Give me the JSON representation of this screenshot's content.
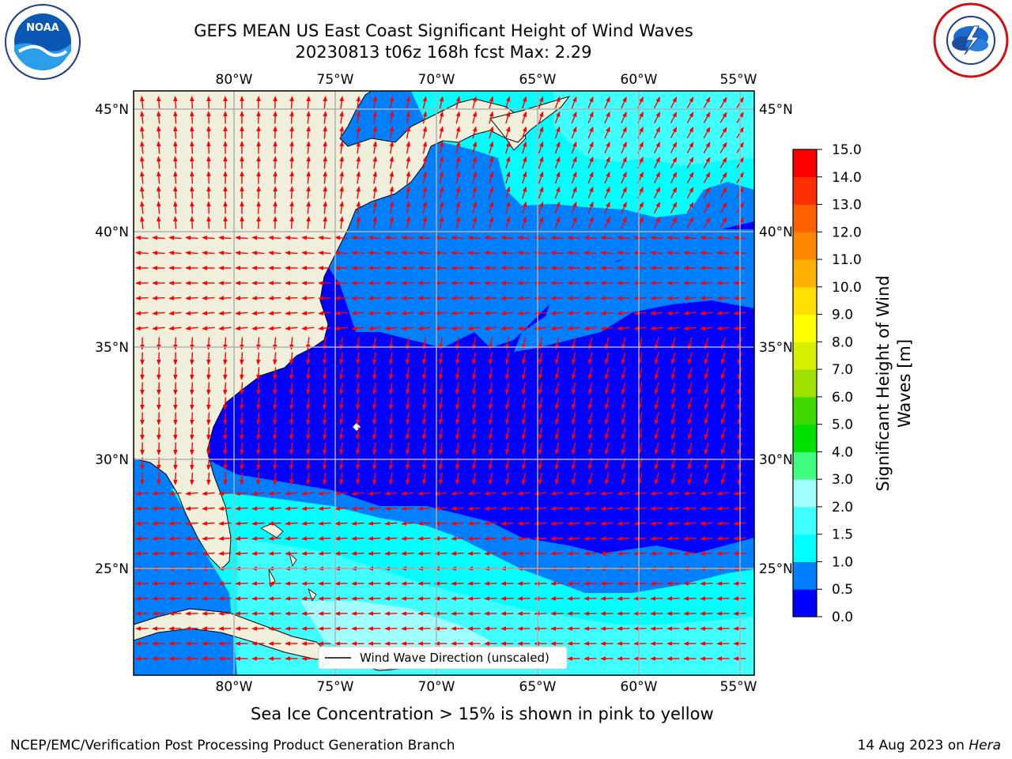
{
  "header": {
    "title_line1": "GEFS MEAN US East Coast Significant Height of Wind Waves",
    "title_line2": "20230813 t06z 168h fcst   Max: 2.29"
  },
  "logos": {
    "noaa": {
      "text": "NOAA",
      "ring_text": "NATIONAL OCEANIC AND ATMOSPHERIC ADMINISTRATION · U.S. DEPARTMENT OF COMMERCE"
    },
    "nws": {
      "ring_text": "NATIONAL WEATHER SERVICE"
    }
  },
  "map": {
    "lon_labels": [
      "80°W",
      "75°W",
      "70°W",
      "65°W",
      "60°W",
      "55°W"
    ],
    "lat_labels": [
      "45°N",
      "40°N",
      "35°N",
      "30°N",
      "25°N"
    ],
    "legend_label": "Wind Wave Direction (unscaled)",
    "colors": {
      "land": "#efefdc",
      "grid": "#b0b0b0",
      "arrow": "#ff0000"
    }
  },
  "colorbar": {
    "title_line1": "Significant Height of Wind",
    "title_line2": "Waves [m]",
    "ticks": [
      "0.0",
      "0.5",
      "1.0",
      "1.5",
      "2.0",
      "3.0",
      "4.0",
      "5.0",
      "6.0",
      "7.0",
      "8.0",
      "9.0",
      "10.0",
      "11.0",
      "12.0",
      "13.0",
      "14.0",
      "15.0"
    ],
    "colors": [
      "#0000ff",
      "#0080ff",
      "#00ffff",
      "#40ffff",
      "#a0ffff",
      "#40ff80",
      "#00e000",
      "#40d800",
      "#a0e000",
      "#d8f000",
      "#ffff00",
      "#ffe000",
      "#ffb000",
      "#ff8800",
      "#ff6000",
      "#ff3000",
      "#ff0000"
    ]
  },
  "caption": "Sea Ice Concentration > 15% is shown in pink to yellow",
  "footer": {
    "left": "NCEP/EMC/Verification Post Processing Product Generation Branch",
    "right_prefix": "14 Aug 2023 on ",
    "right_host": "Hera"
  }
}
